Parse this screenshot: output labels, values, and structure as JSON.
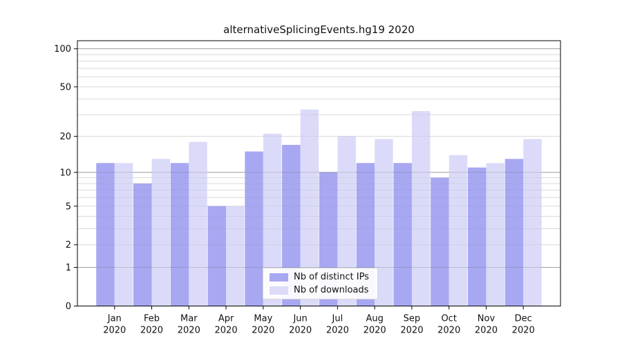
{
  "title": "alternativeSplicingEvents.hg19 2020",
  "legend": {
    "items": [
      {
        "label": "Nb of distinct IPs",
        "color": "#a7a7f2"
      },
      {
        "label": "Nb of downloads",
        "color": "#dbdbf9"
      }
    ]
  },
  "chart_data": {
    "type": "bar",
    "title": "alternativeSplicingEvents.hg19 2020",
    "categories": [
      "Jan",
      "Feb",
      "Mar",
      "Apr",
      "May",
      "Jun",
      "Jul",
      "Aug",
      "Sep",
      "Oct",
      "Nov",
      "Dec"
    ],
    "category_year": "2020",
    "series": [
      {
        "name": "Nb of distinct IPs",
        "color": "#a7a7f2",
        "values": [
          12,
          8,
          12,
          5,
          15,
          17,
          10,
          12,
          12,
          9,
          11,
          13
        ]
      },
      {
        "name": "Nb of downloads",
        "color": "#dbdbf9",
        "values": [
          12,
          13,
          18,
          5,
          21,
          33,
          20,
          19,
          32,
          14,
          12,
          19
        ]
      }
    ],
    "xlabel": "",
    "ylabel": "",
    "yscale": "log1p",
    "ylim": [
      0,
      115.7
    ],
    "ytick_labels": [
      "0",
      "1",
      "2",
      "5",
      "10",
      "20",
      "50",
      "100"
    ],
    "yticks": [
      0,
      1,
      2,
      5,
      10,
      20,
      50,
      100
    ],
    "decade_gridlines": [
      1,
      10,
      100
    ],
    "minor_gridlines": [
      2,
      3,
      4,
      5,
      6,
      7,
      8,
      9,
      20,
      30,
      40,
      50,
      60,
      70,
      80,
      90
    ],
    "grid": true,
    "legend_position": "lower center",
    "colors": {
      "decade_grid": "#b3b3b3",
      "minor_grid": "#e7e7e7",
      "frame": "#000000",
      "tick_text": "#111111"
    }
  }
}
